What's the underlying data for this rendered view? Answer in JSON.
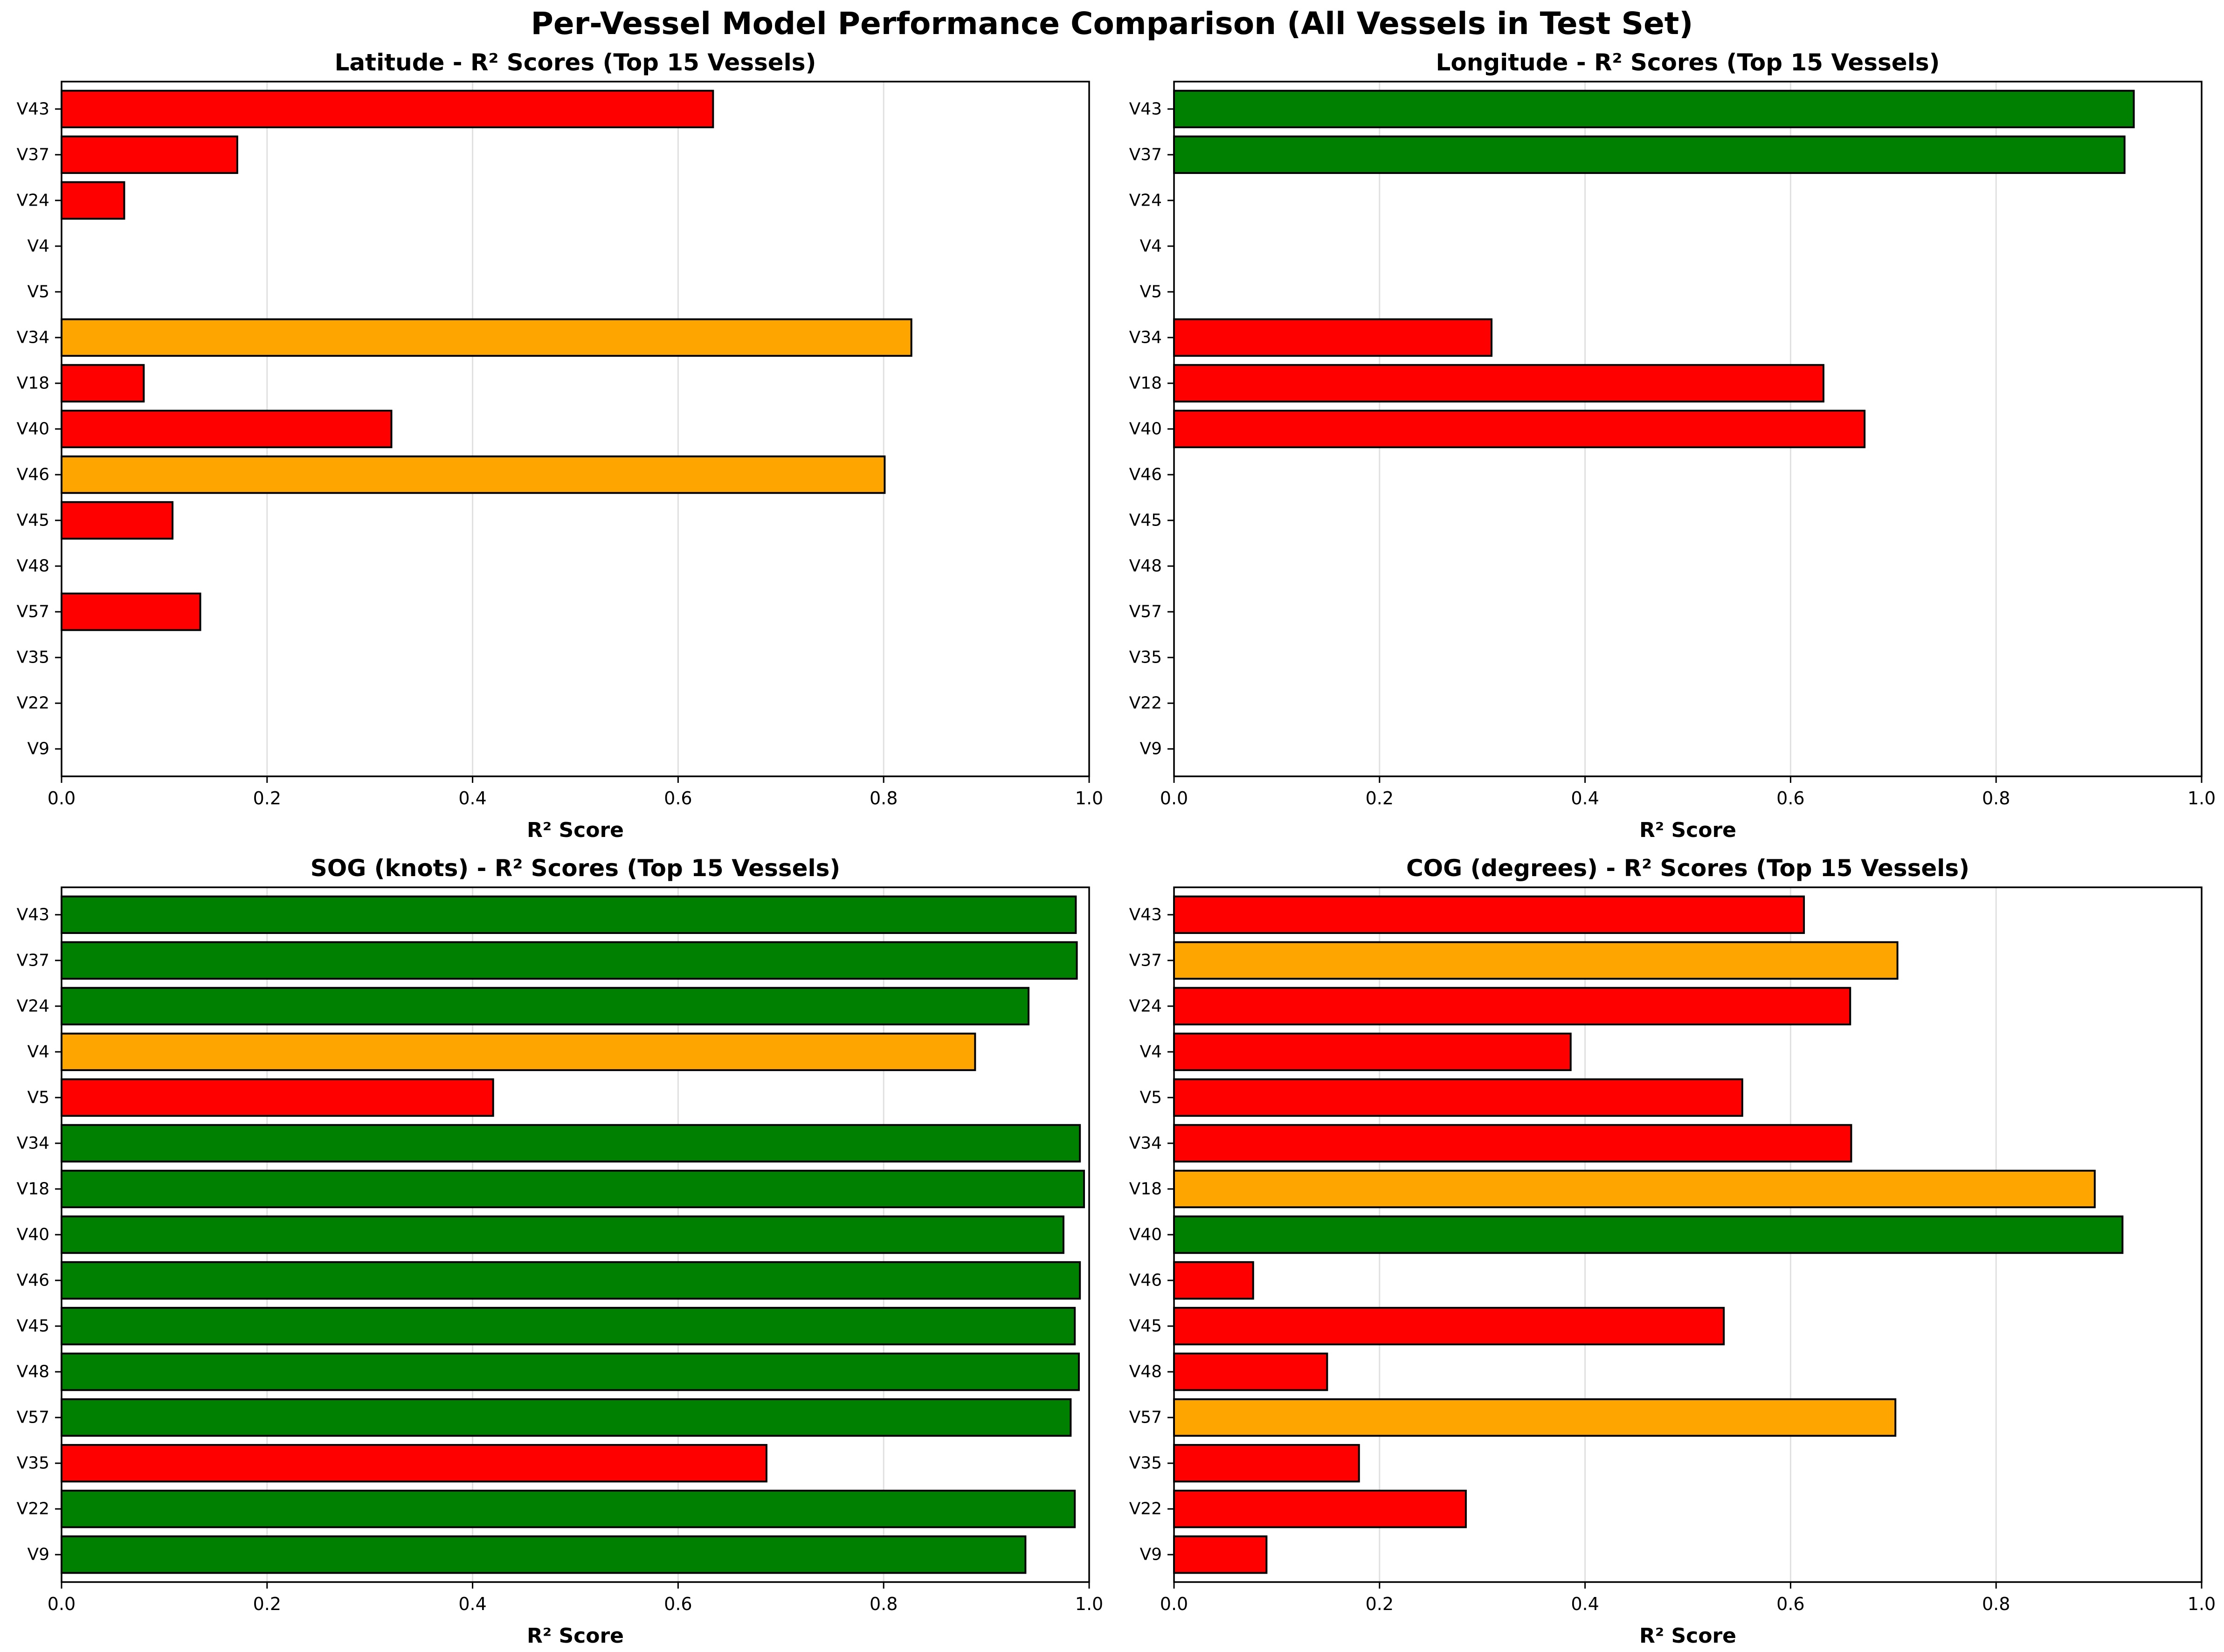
{
  "figure_title": "Per-Vessel Model Performance Comparison (All Vessels in Test Set)",
  "colors": {
    "green": "#008000",
    "orange": "#ffa500",
    "red": "#ff0000",
    "edge": "#000000",
    "grid": "#e0e0e0"
  },
  "chart_data": [
    {
      "type": "bar",
      "orientation": "horizontal",
      "title": "Latitude - R² Scores (Top 15 Vessels)",
      "xlabel": "R² Score",
      "xlim": [
        0,
        1.0
      ],
      "xticks": [
        "0.0",
        "0.2",
        "0.4",
        "0.6",
        "0.8",
        "1.0"
      ],
      "grid": "vertical",
      "categories": [
        "V43",
        "V37",
        "V24",
        "V4",
        "V5",
        "V34",
        "V18",
        "V40",
        "V46",
        "V45",
        "V48",
        "V57",
        "V35",
        "V22",
        "V9"
      ],
      "values": [
        0.634,
        0.171,
        0.061,
        null,
        null,
        0.827,
        0.08,
        0.321,
        0.801,
        0.108,
        null,
        0.135,
        null,
        null,
        null
      ],
      "bar_colors": [
        "red",
        "red",
        "red",
        null,
        null,
        "orange",
        "red",
        "red",
        "orange",
        "red",
        null,
        "red",
        null,
        null,
        null
      ]
    },
    {
      "type": "bar",
      "orientation": "horizontal",
      "title": "Longitude - R² Scores (Top 15 Vessels)",
      "xlabel": "R² Score",
      "xlim": [
        0,
        1.0
      ],
      "xticks": [
        "0.0",
        "0.2",
        "0.4",
        "0.6",
        "0.8",
        "1.0"
      ],
      "grid": "vertical",
      "categories": [
        "V43",
        "V37",
        "V24",
        "V4",
        "V5",
        "V34",
        "V18",
        "V40",
        "V46",
        "V45",
        "V48",
        "V57",
        "V35",
        "V22",
        "V9"
      ],
      "values": [
        0.934,
        0.925,
        null,
        null,
        null,
        0.309,
        0.632,
        0.672,
        null,
        null,
        null,
        null,
        null,
        null,
        null
      ],
      "bar_colors": [
        "green",
        "green",
        null,
        null,
        null,
        "red",
        "red",
        "red",
        null,
        null,
        null,
        null,
        null,
        null,
        null
      ]
    },
    {
      "type": "bar",
      "orientation": "horizontal",
      "title": "SOG (knots) - R² Scores (Top 15 Vessels)",
      "xlabel": "R² Score",
      "xlim": [
        0,
        1.0
      ],
      "xticks": [
        "0.0",
        "0.2",
        "0.4",
        "0.6",
        "0.8",
        "1.0"
      ],
      "grid": "vertical",
      "categories": [
        "V43",
        "V37",
        "V24",
        "V4",
        "V5",
        "V34",
        "V18",
        "V40",
        "V46",
        "V45",
        "V48",
        "V57",
        "V35",
        "V22",
        "V9"
      ],
      "values": [
        0.987,
        0.988,
        0.941,
        0.889,
        0.42,
        0.991,
        0.995,
        0.975,
        0.991,
        0.986,
        0.99,
        0.982,
        0.686,
        0.986,
        0.938
      ],
      "bar_colors": [
        "green",
        "green",
        "green",
        "orange",
        "red",
        "green",
        "green",
        "green",
        "green",
        "green",
        "green",
        "green",
        "red",
        "green",
        "green"
      ]
    },
    {
      "type": "bar",
      "orientation": "horizontal",
      "title": "COG (degrees) - R² Scores (Top 15 Vessels)",
      "xlabel": "R² Score",
      "xlim": [
        0,
        1.0
      ],
      "xticks": [
        "0.0",
        "0.2",
        "0.4",
        "0.6",
        "0.8",
        "1.0"
      ],
      "grid": "vertical",
      "categories": [
        "V43",
        "V37",
        "V24",
        "V4",
        "V5",
        "V34",
        "V18",
        "V40",
        "V46",
        "V45",
        "V48",
        "V57",
        "V35",
        "V22",
        "V9"
      ],
      "values": [
        0.613,
        0.704,
        0.658,
        0.386,
        0.553,
        0.659,
        0.896,
        0.923,
        0.077,
        0.535,
        0.149,
        0.702,
        0.18,
        0.284,
        0.09
      ],
      "bar_colors": [
        "red",
        "orange",
        "red",
        "red",
        "red",
        "red",
        "orange",
        "green",
        "red",
        "red",
        "red",
        "orange",
        "red",
        "red",
        "red"
      ]
    }
  ]
}
